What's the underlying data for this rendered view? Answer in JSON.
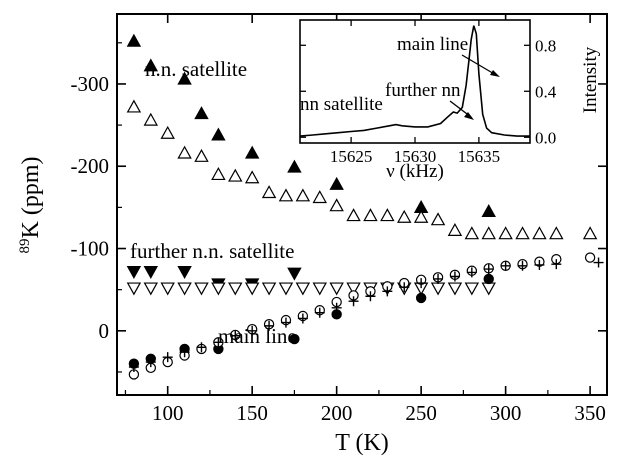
{
  "chart_data": [
    {
      "type": "scatter",
      "title": "",
      "xlabel": "T (K)",
      "ylabel": "89K (ppm)",
      "ylabel_sup": "89",
      "ylabel_main": "K (ppm)",
      "xlim": [
        70,
        360
      ],
      "ylim": [
        -385,
        78
      ],
      "y_axis_inverted": true,
      "x_ticks": [
        100,
        150,
        200,
        250,
        300,
        350
      ],
      "y_ticks": [
        {
          "value": -300,
          "label": "-300"
        },
        {
          "value": -200,
          "label": "-200"
        },
        {
          "value": -100,
          "label": "-100"
        },
        {
          "value": 0,
          "label": "0"
        }
      ],
      "annotations": {
        "nn_satellite": "n.n. satellite",
        "further_nn_satellite": "further n.n. satellite",
        "main_line": "main line"
      },
      "series": [
        {
          "marker": "filled-triangle-up",
          "points": [
            [
              80,
              -352
            ],
            [
              90,
              -322
            ],
            [
              110,
              -306
            ],
            [
              120,
              -264
            ],
            [
              130,
              -238
            ],
            [
              150,
              -216
            ],
            [
              175,
              -199
            ],
            [
              200,
              -178
            ],
            [
              250,
              -150
            ],
            [
              290,
              -145
            ]
          ]
        },
        {
          "marker": "open-triangle-up",
          "points": [
            [
              80,
              -272
            ],
            [
              90,
              -256
            ],
            [
              100,
              -240
            ],
            [
              110,
              -216
            ],
            [
              120,
              -212
            ],
            [
              130,
              -190
            ],
            [
              140,
              -188
            ],
            [
              150,
              -186
            ],
            [
              160,
              -168
            ],
            [
              170,
              -164
            ],
            [
              180,
              -164
            ],
            [
              190,
              -162
            ],
            [
              200,
              -152
            ],
            [
              210,
              -140
            ],
            [
              220,
              -140
            ],
            [
              230,
              -140
            ],
            [
              240,
              -138
            ],
            [
              250,
              -138
            ],
            [
              260,
              -135
            ],
            [
              270,
              -122
            ],
            [
              280,
              -118
            ],
            [
              290,
              -118
            ],
            [
              300,
              -118
            ],
            [
              310,
              -118
            ],
            [
              320,
              -118
            ],
            [
              330,
              -118
            ],
            [
              350,
              -118
            ]
          ]
        },
        {
          "marker": "filled-triangle-down",
          "points": [
            [
              80,
              -72
            ],
            [
              90,
              -72
            ],
            [
              110,
              -72
            ],
            [
              130,
              -57
            ],
            [
              150,
              -57
            ],
            [
              175,
              -70
            ]
          ]
        },
        {
          "marker": "open-triangle-down",
          "points": [
            [
              80,
              -52
            ],
            [
              90,
              -52
            ],
            [
              100,
              -52
            ],
            [
              110,
              -52
            ],
            [
              120,
              -52
            ],
            [
              130,
              -52
            ],
            [
              140,
              -52
            ],
            [
              150,
              -52
            ],
            [
              160,
              -52
            ],
            [
              170,
              -52
            ],
            [
              180,
              -52
            ],
            [
              190,
              -52
            ],
            [
              200,
              -52
            ],
            [
              210,
              -52
            ],
            [
              220,
              -52
            ],
            [
              230,
              -52
            ],
            [
              240,
              -52
            ],
            [
              250,
              -52
            ],
            [
              260,
              -52
            ],
            [
              270,
              -52
            ],
            [
              280,
              -52
            ],
            [
              290,
              -52
            ]
          ]
        },
        {
          "marker": "filled-circle",
          "points": [
            [
              80,
              40
            ],
            [
              90,
              34
            ],
            [
              110,
              22
            ],
            [
              130,
              22
            ],
            [
              175,
              10
            ],
            [
              200,
              -20
            ],
            [
              250,
              -40
            ],
            [
              290,
              -63
            ]
          ]
        },
        {
          "marker": "open-circle",
          "points": [
            [
              80,
              53
            ],
            [
              90,
              45
            ],
            [
              100,
              38
            ],
            [
              110,
              30
            ],
            [
              120,
              22
            ],
            [
              130,
              14
            ],
            [
              140,
              5
            ],
            [
              150,
              -2
            ],
            [
              160,
              -8
            ],
            [
              170,
              -13
            ],
            [
              180,
              -18
            ],
            [
              190,
              -25
            ],
            [
              200,
              -35
            ],
            [
              210,
              -43
            ],
            [
              220,
              -48
            ],
            [
              230,
              -54
            ],
            [
              240,
              -58
            ],
            [
              250,
              -62
            ],
            [
              260,
              -65
            ],
            [
              270,
              -68
            ],
            [
              280,
              -73
            ],
            [
              290,
              -76
            ],
            [
              300,
              -79
            ],
            [
              310,
              -81
            ],
            [
              320,
              -84
            ],
            [
              330,
              -87
            ],
            [
              350,
              -89
            ]
          ]
        },
        {
          "marker": "plus",
          "points": [
            [
              80,
              44
            ],
            [
              90,
              38
            ],
            [
              100,
              32
            ],
            [
              110,
              26
            ],
            [
              120,
              20
            ],
            [
              130,
              14
            ],
            [
              140,
              6
            ],
            [
              150,
              0
            ],
            [
              160,
              -6
            ],
            [
              170,
              -10
            ],
            [
              180,
              -15
            ],
            [
              190,
              -22
            ],
            [
              200,
              -28
            ],
            [
              210,
              -36
            ],
            [
              220,
              -42
            ],
            [
              230,
              -48
            ],
            [
              240,
              -53
            ],
            [
              250,
              -58
            ],
            [
              260,
              -63
            ],
            [
              270,
              -66
            ],
            [
              280,
              -71
            ],
            [
              290,
              -75
            ],
            [
              300,
              -79
            ],
            [
              310,
              -79
            ],
            [
              320,
              -80
            ],
            [
              330,
              -81
            ],
            [
              355,
              -83
            ]
          ]
        }
      ]
    },
    {
      "type": "line",
      "xlabel": "ν (kHz)",
      "ylabel": "Intensity",
      "xlim": [
        15621,
        15639
      ],
      "ylim": [
        -0.05,
        1.02
      ],
      "x_ticks": [
        15625,
        15630,
        15635
      ],
      "y_ticks": [
        {
          "value": 0.0,
          "label": "0.0"
        },
        {
          "value": 0.4,
          "label": "0.4"
        },
        {
          "value": 0.8,
          "label": "0.8"
        }
      ],
      "annotations": {
        "main_line": "main line",
        "further_nn": "further nn",
        "nn_satellite": "nn satellite"
      },
      "series": [
        {
          "x": [
            15621,
            15622,
            15623,
            15624,
            15625,
            15626,
            15627,
            15628,
            15628.5,
            15629,
            15630,
            15631,
            15632,
            15632.5,
            15633,
            15633.3,
            15633.7,
            15634,
            15634.2,
            15634.4,
            15634.6,
            15634.8,
            15635,
            15635.3,
            15635.6,
            15636,
            15637,
            15638,
            15639
          ],
          "y": [
            0.01,
            0.02,
            0.03,
            0.04,
            0.05,
            0.06,
            0.08,
            0.1,
            0.11,
            0.1,
            0.09,
            0.09,
            0.12,
            0.17,
            0.22,
            0.21,
            0.26,
            0.45,
            0.65,
            0.85,
            0.97,
            0.9,
            0.55,
            0.2,
            0.08,
            0.04,
            0.02,
            0.01,
            0.01
          ]
        }
      ]
    }
  ]
}
